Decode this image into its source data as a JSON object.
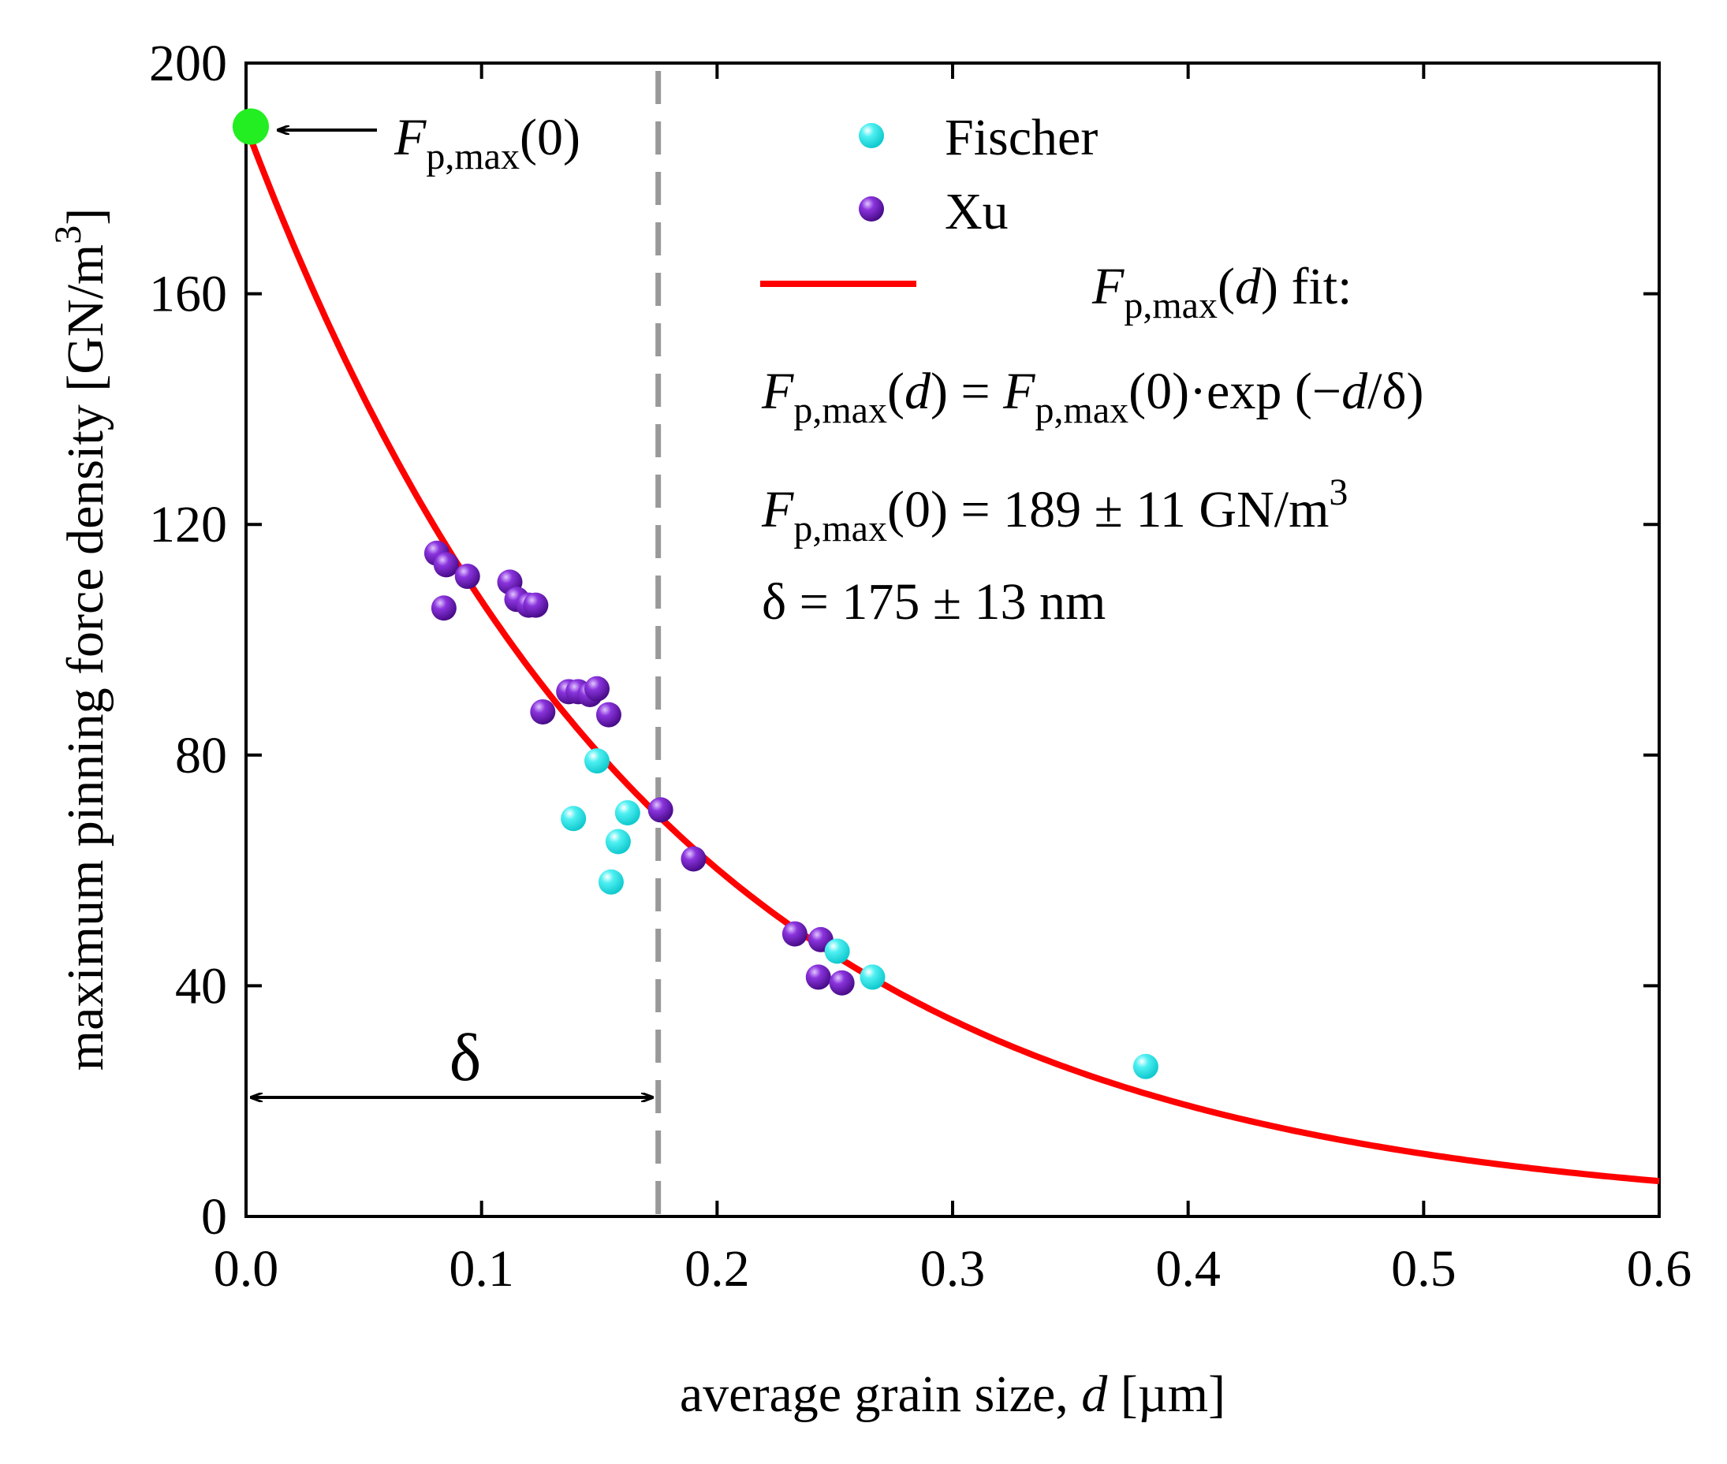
{
  "chart_data": {
    "type": "scatter",
    "xlabel": "average grain size, d [µm]",
    "xlabel_parts": [
      "average grain size, ",
      "d",
      " [µm]"
    ],
    "ylabel": "maximum pinning force density [GN/m3]",
    "ylabel_parts": [
      "maximum pinning force density [GN/m",
      "3",
      "]"
    ],
    "xlim": [
      0.0,
      0.6
    ],
    "ylim": [
      0,
      200
    ],
    "x_ticks": [
      0.0,
      0.1,
      0.2,
      0.3,
      0.4,
      0.5,
      0.6
    ],
    "x_tick_labels": [
      "0.0",
      "0.1",
      "0.2",
      "0.3",
      "0.4",
      "0.5",
      "0.6"
    ],
    "y_ticks": [
      0,
      40,
      80,
      120,
      160,
      200
    ],
    "y_tick_labels": [
      "0",
      "40",
      "80",
      "120",
      "160",
      "200"
    ],
    "grid": false,
    "legend_position": "top-right",
    "series": [
      {
        "name": "Fischer",
        "color": "#22e6ea",
        "points": [
          [
            0.149,
            79
          ],
          [
            0.139,
            69
          ],
          [
            0.162,
            70
          ],
          [
            0.158,
            65
          ],
          [
            0.155,
            58
          ],
          [
            0.251,
            46
          ],
          [
            0.266,
            41.5
          ],
          [
            0.382,
            26
          ]
        ]
      },
      {
        "name": "Xu",
        "color": "#7b22cc",
        "points": [
          [
            0.081,
            115
          ],
          [
            0.085,
            113
          ],
          [
            0.094,
            111
          ],
          [
            0.084,
            105.5
          ],
          [
            0.112,
            110
          ],
          [
            0.115,
            107
          ],
          [
            0.12,
            106
          ],
          [
            0.123,
            106
          ],
          [
            0.137,
            91
          ],
          [
            0.141,
            91
          ],
          [
            0.146,
            90.5
          ],
          [
            0.149,
            91.5
          ],
          [
            0.154,
            87
          ],
          [
            0.126,
            87.5
          ],
          [
            0.176,
            70.5
          ],
          [
            0.19,
            62
          ],
          [
            0.233,
            49
          ],
          [
            0.244,
            48
          ],
          [
            0.243,
            41.5
          ],
          [
            0.253,
            40.5
          ]
        ]
      },
      {
        "name": "Fp,max(d) fit:",
        "type": "line",
        "color": "#ff0000",
        "model": "exp",
        "amplitude": 189,
        "decay": 0.175
      }
    ],
    "legend": {
      "fischer": "Fischer",
      "xu": "Xu",
      "fit_label_pre": "F",
      "fit_label_sub": "p,max",
      "fit_label_arg": "(d)",
      "fit_label_arg_var": "d",
      "fit_label_post": " fit:"
    },
    "highlight_point": {
      "x": 0.0,
      "y": 189,
      "color": "#22ee22",
      "label_main": "F",
      "label_sub": "p,max",
      "label_arg": "(0)"
    },
    "delta_line": {
      "x": 0.175,
      "color": "#999999",
      "label": "δ"
    },
    "annotations": {
      "formula_lhs_main": "F",
      "formula_lhs_sub": "p,max",
      "formula_lhs_open": "(",
      "formula_lhs_var": "d",
      "formula_lhs_close": ") = ",
      "formula_rhs_main": "F",
      "formula_rhs_sub": "p,max",
      "formula_rhs_rest": "(0)·exp (−",
      "formula_rhs_var": "d",
      "formula_rhs_end": "/δ)",
      "f0_main": "F",
      "f0_sub": "p,max",
      "f0_rest": "(0) = 189 ± 11 GN/m",
      "f0_sup": "3",
      "delta_text": "δ = 175 ± 13 nm"
    }
  }
}
